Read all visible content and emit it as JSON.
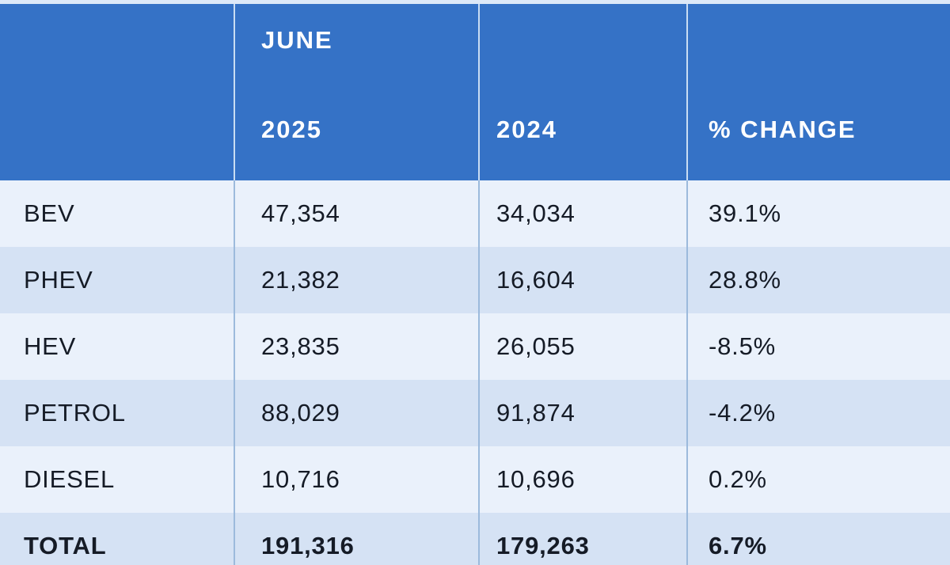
{
  "colors": {
    "header-bg": "#3572c6",
    "row-light": "#eaf1fb",
    "row-dark": "#d5e2f4",
    "top-strip": "#dde9f8",
    "divider-header": "#c9ddf3",
    "divider-body": "#9cbadc",
    "text-dark": "#151b26",
    "text-white": "#ffffff"
  },
  "header": {
    "month": "JUNE",
    "year_current": "2025",
    "year_previous": "2024",
    "change_label": "% CHANGE"
  },
  "rows": [
    {
      "label": "BEV",
      "y2025": "47,354",
      "y2024": "34,034",
      "change": "39.1%"
    },
    {
      "label": "PHEV",
      "y2025": "21,382",
      "y2024": "16,604",
      "change": "28.8%"
    },
    {
      "label": "HEV",
      "y2025": "23,835",
      "y2024": "26,055",
      "change": "-8.5%"
    },
    {
      "label": "PETROL",
      "y2025": "88,029",
      "y2024": "91,874",
      "change": "-4.2%"
    },
    {
      "label": "DIESEL",
      "y2025": "10,716",
      "y2024": "10,696",
      "change": "0.2%"
    },
    {
      "label": "TOTAL",
      "y2025": "191,316",
      "y2024": "179,263",
      "change": "6.7%"
    }
  ],
  "chart_data": {
    "type": "table",
    "categories": [
      "BEV",
      "PHEV",
      "HEV",
      "PETROL",
      "DIESEL",
      "TOTAL"
    ],
    "series": [
      {
        "name": "JUNE 2025",
        "values": [
          47354,
          21382,
          23835,
          88029,
          10716,
          191316
        ]
      },
      {
        "name": "2024",
        "values": [
          34034,
          16604,
          26055,
          91874,
          10696,
          179263
        ]
      },
      {
        "name": "% CHANGE",
        "values": [
          39.1,
          28.8,
          -8.5,
          -4.2,
          0.2,
          6.7
        ]
      }
    ],
    "column_headers": [
      "",
      "JUNE 2025",
      "2024",
      "% CHANGE"
    ],
    "layout": {
      "header_background": "#3572c6",
      "alternating_rows": true,
      "total_row_bold": true
    }
  }
}
